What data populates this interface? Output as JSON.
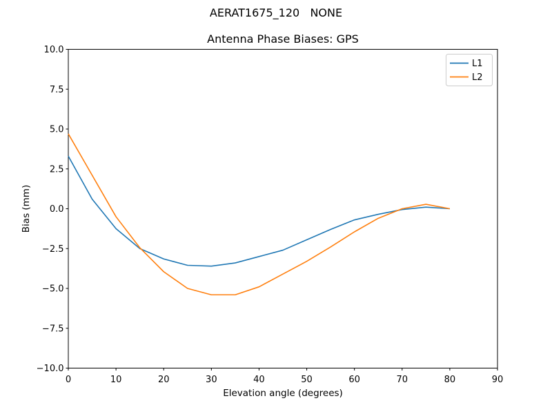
{
  "figure": {
    "suptitle": "AERAT1675_120   NONE",
    "background": "#ffffff"
  },
  "chart_data": {
    "type": "line",
    "title": "Antenna Phase Biases: GPS",
    "xlabel": "Elevation angle (degrees)",
    "ylabel": "Bias (mm)",
    "xlim": [
      0,
      90
    ],
    "ylim": [
      -10,
      10
    ],
    "xticks": [
      0,
      10,
      20,
      30,
      40,
      50,
      60,
      70,
      80,
      90
    ],
    "yticks": [
      -10,
      -7.5,
      -5,
      -2.5,
      0,
      2.5,
      5,
      7.5,
      10
    ],
    "grid": false,
    "legend_position": "upper right",
    "x": [
      0,
      5,
      10,
      15,
      20,
      25,
      30,
      35,
      40,
      45,
      50,
      55,
      60,
      65,
      70,
      75,
      80
    ],
    "series": [
      {
        "name": "L1",
        "color": "#1f77b4",
        "values": [
          3.3,
          0.6,
          -1.25,
          -2.5,
          -3.15,
          -3.55,
          -3.6,
          -3.4,
          -3.0,
          -2.6,
          -1.95,
          -1.3,
          -0.7,
          -0.35,
          -0.05,
          0.1,
          0.0
        ]
      },
      {
        "name": "L2",
        "color": "#ff7f0e",
        "values": [
          4.7,
          2.1,
          -0.5,
          -2.45,
          -3.95,
          -5.0,
          -5.4,
          -5.4,
          -4.9,
          -4.1,
          -3.3,
          -2.4,
          -1.45,
          -0.6,
          0.0,
          0.28,
          0.0
        ]
      }
    ]
  }
}
